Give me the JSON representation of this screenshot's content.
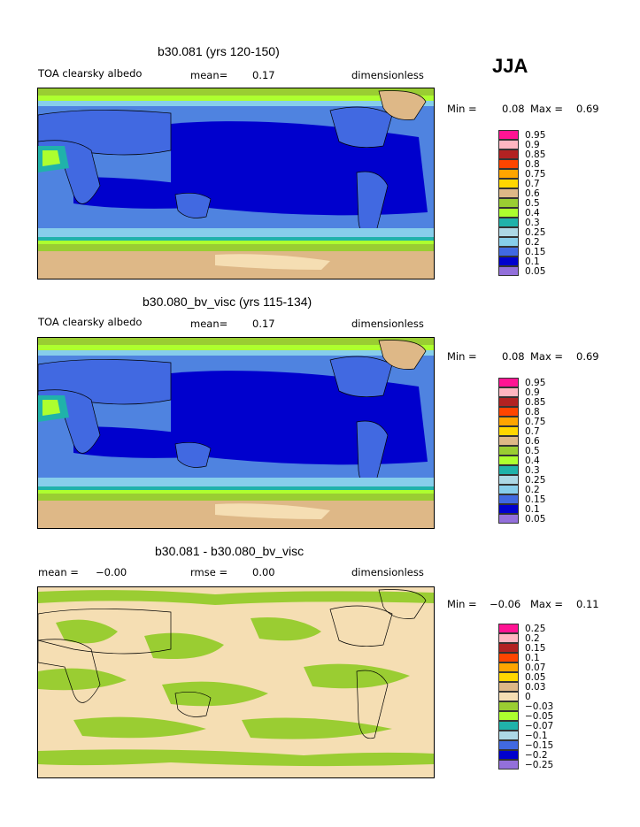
{
  "season": "JJA",
  "panels": [
    {
      "title": "b30.081 (yrs 120-150)",
      "left_label": "TOA clearsky albedo",
      "mean_label": "mean=",
      "mean_value": "0.17",
      "units": "dimensionless",
      "min_label": "Min =",
      "min_value": "0.08",
      "max_label": "Max =",
      "max_value": "0.69",
      "colorbar": [
        {
          "label": "0.95",
          "color": "#ff1493"
        },
        {
          "label": "0.9",
          "color": "#ffb6c1"
        },
        {
          "label": "0.85",
          "color": "#b22222"
        },
        {
          "label": "0.8",
          "color": "#ff4500"
        },
        {
          "label": "0.75",
          "color": "#ffa500"
        },
        {
          "label": "0.7",
          "color": "#ffd700"
        },
        {
          "label": "0.6",
          "color": "#deb887"
        },
        {
          "label": "0.5",
          "color": "#9acd32"
        },
        {
          "label": "0.4",
          "color": "#adff2f"
        },
        {
          "label": "0.3",
          "color": "#20b2aa"
        },
        {
          "label": "0.25",
          "color": "#add8e6"
        },
        {
          "label": "0.2",
          "color": "#87ceeb"
        },
        {
          "label": "0.15",
          "color": "#4169e1"
        },
        {
          "label": "0.1",
          "color": "#0000cd"
        },
        {
          "label": "0.05",
          "color": "#9370db"
        }
      ]
    },
    {
      "title": "b30.080_bv_visc (yrs 115-134)",
      "left_label": "TOA clearsky albedo",
      "mean_label": "mean=",
      "mean_value": "0.17",
      "units": "dimensionless",
      "min_label": "Min =",
      "min_value": "0.08",
      "max_label": "Max =",
      "max_value": "0.69",
      "colorbar": [
        {
          "label": "0.95",
          "color": "#ff1493"
        },
        {
          "label": "0.9",
          "color": "#ffb6c1"
        },
        {
          "label": "0.85",
          "color": "#b22222"
        },
        {
          "label": "0.8",
          "color": "#ff4500"
        },
        {
          "label": "0.75",
          "color": "#ffa500"
        },
        {
          "label": "0.7",
          "color": "#ffd700"
        },
        {
          "label": "0.6",
          "color": "#deb887"
        },
        {
          "label": "0.5",
          "color": "#9acd32"
        },
        {
          "label": "0.4",
          "color": "#adff2f"
        },
        {
          "label": "0.3",
          "color": "#20b2aa"
        },
        {
          "label": "0.25",
          "color": "#add8e6"
        },
        {
          "label": "0.2",
          "color": "#87ceeb"
        },
        {
          "label": "0.15",
          "color": "#4169e1"
        },
        {
          "label": "0.1",
          "color": "#0000cd"
        },
        {
          "label": "0.05",
          "color": "#9370db"
        }
      ]
    },
    {
      "title": "b30.081 - b30.080_bv_visc",
      "left_label": "mean =",
      "mean_label": "rmse =",
      "left_value": "−0.00",
      "mean_value": "0.00",
      "units": "dimensionless",
      "min_label": "Min =",
      "min_value": "−0.06",
      "max_label": "Max =",
      "max_value": "0.11",
      "colorbar": [
        {
          "label": "0.25",
          "color": "#ff1493"
        },
        {
          "label": "0.2",
          "color": "#ffb6c1"
        },
        {
          "label": "0.15",
          "color": "#b22222"
        },
        {
          "label": "0.1",
          "color": "#ff4500"
        },
        {
          "label": "0.07",
          "color": "#ffa500"
        },
        {
          "label": "0.05",
          "color": "#ffd700"
        },
        {
          "label": "0.03",
          "color": "#deb887"
        },
        {
          "label": "0",
          "color": "#f5deb3"
        },
        {
          "label": "−0.03",
          "color": "#9acd32"
        },
        {
          "label": "−0.05",
          "color": "#adff2f"
        },
        {
          "label": "−0.07",
          "color": "#20b2aa"
        },
        {
          "label": "−0.1",
          "color": "#add8e6"
        },
        {
          "label": "−0.15",
          "color": "#4169e1"
        },
        {
          "label": "−0.2",
          "color": "#0000cd"
        },
        {
          "label": "−0.25",
          "color": "#9370db"
        }
      ]
    }
  ]
}
